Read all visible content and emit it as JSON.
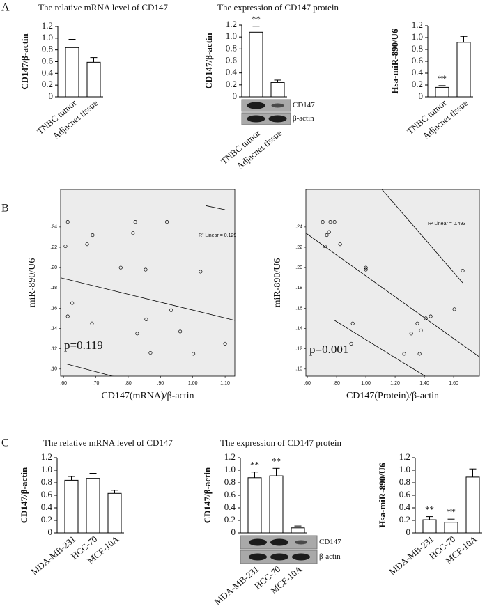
{
  "chart_data": [
    {
      "type": "bar",
      "panel": "A",
      "title": "The relative  mRNA level of CD147",
      "ylabel": "CD147/β-actin",
      "categories": [
        "TNBC tumor",
        "Adjacnet tissue"
      ],
      "values": [
        0.84,
        0.59
      ],
      "errors": [
        0.14,
        0.08
      ],
      "color": "#ffffff",
      "ylim": [
        0,
        1.2
      ],
      "yticks": [
        0,
        0.2,
        0.4,
        0.6,
        0.8,
        {
          "value": 1,
          "label": "1.0"
        },
        1.2
      ]
    },
    {
      "type": "bar",
      "title": "The expression of CD147  protein",
      "ylabel": "CD147/β-actin",
      "categories": [
        "TNBC tumor",
        "Adjacnet tissue"
      ],
      "values": [
        1.08,
        0.24
      ],
      "errors": [
        0.1,
        0.04
      ],
      "significance": [
        "**",
        null
      ],
      "color": "#ffffff",
      "blot_labels": [
        "CD147",
        "β-actin"
      ],
      "ylim": [
        0,
        1.2
      ],
      "yticks": [
        0,
        0.2,
        0.4,
        0.6,
        0.8,
        {
          "value": 1,
          "label": "1.0"
        },
        1.2
      ]
    },
    {
      "type": "bar",
      "ylabel": "Hsa-miR-890/U6",
      "categories": [
        "TNBC tumor",
        "Adjacnet tissue"
      ],
      "values": [
        0.16,
        0.92
      ],
      "errors": [
        0.03,
        0.1
      ],
      "significance": [
        "**",
        null
      ],
      "color": "#ffffff",
      "ylim": [
        0,
        1.2
      ],
      "yticks": [
        0,
        0.2,
        0.4,
        0.6,
        0.8,
        {
          "value": 1,
          "label": "1.0"
        },
        1.2
      ]
    },
    {
      "type": "scatter",
      "panel": "B",
      "xlabel": "CD147(mRNA)/β-actin",
      "ylabel": "miR-890/U6",
      "x": [
        0.613,
        0.606,
        0.673,
        0.69,
        0.627,
        0.613,
        0.688,
        0.777,
        0.815,
        0.822,
        0.854,
        0.856,
        0.828,
        0.869,
        0.92,
        0.933,
        0.961,
        1.024,
        1.002,
        1.1
      ],
      "y": [
        0.245,
        0.221,
        0.223,
        0.232,
        0.165,
        0.152,
        0.145,
        0.2,
        0.234,
        0.245,
        0.198,
        0.149,
        0.135,
        0.116,
        0.245,
        0.158,
        0.137,
        0.196,
        0.115,
        0.125
      ],
      "fit_label": "R² Linear = 0.129",
      "annotation": "p=0.119",
      "fit_line": {
        "x": [
          0.591,
          1.13
        ],
        "y": [
          0.19,
          0.148
        ]
      },
      "ci_lines": [
        {
          "x": [
            1.04,
            1.1
          ],
          "y": [
            0.261,
            0.257
          ]
        },
        {
          "x": [
            0.609,
            0.759
          ],
          "y": [
            0.105,
            0.0924
          ]
        }
      ],
      "xlim": [
        0.591,
        1.13
      ],
      "ylim": [
        0.093,
        0.277
      ],
      "xticks": [
        {
          "value": 0.6,
          "label": ".60"
        },
        {
          "value": 0.7,
          "label": ".70"
        },
        {
          "value": 0.8,
          "label": ".80"
        },
        {
          "value": 0.9,
          "label": ".90"
        },
        {
          "value": 1,
          "label": "1.00"
        },
        {
          "value": 1.1,
          "label": "1.10"
        }
      ],
      "yticks": [
        {
          "value": 0.1,
          "label": ".10"
        },
        {
          "value": 0.12,
          "label": ".12"
        },
        {
          "value": 0.14,
          "label": ".14"
        },
        {
          "value": 0.16,
          "label": ".16"
        },
        {
          "value": 0.18,
          "label": ".18"
        },
        {
          "value": 0.2,
          "label": ".20"
        },
        {
          "value": 0.22,
          "label": ".22"
        },
        {
          "value": 0.24,
          "label": ".24"
        }
      ]
    },
    {
      "type": "scatter",
      "xlabel": "CD147(Protein)/β-actin",
      "ylabel": "miR-890/U6",
      "x": [
        0.705,
        0.757,
        0.786,
        0.748,
        0.733,
        0.719,
        0.824,
        1.0,
        1.0,
        0.91,
        0.9,
        1.262,
        1.367,
        1.31,
        1.352,
        1.376,
        1.41,
        1.443,
        1.605,
        1.662
      ],
      "y": [
        0.245,
        0.245,
        0.245,
        0.235,
        0.232,
        0.221,
        0.223,
        0.2,
        0.198,
        0.145,
        0.125,
        0.115,
        0.115,
        0.135,
        0.145,
        0.138,
        0.15,
        0.152,
        0.159,
        0.197
      ],
      "fit_label": "R² Linear = 0.493",
      "annotation": "p=0.001",
      "fit_line": {
        "x": [
          0.59,
          1.776
        ],
        "y": [
          0.234,
          0.112
        ]
      },
      "ci_lines": [
        {
          "x": [
            1.11,
            1.662
          ],
          "y": [
            0.277,
            0.185
          ]
        },
        {
          "x": [
            0.786,
            1.405
          ],
          "y": [
            0.148,
            0.093
          ]
        }
      ],
      "xlim": [
        0.59,
        1.776
      ],
      "ylim": [
        0.093,
        0.277
      ],
      "xticks": [
        {
          "value": 0.6,
          "label": ".60"
        },
        {
          "value": 0.8,
          "label": ".80"
        },
        {
          "value": 1,
          "label": "1.00"
        },
        {
          "value": 1.2,
          "label": "1.20"
        },
        {
          "value": 1.4,
          "label": "1.40"
        },
        {
          "value": 1.6,
          "label": "1.60"
        }
      ],
      "yticks": [
        {
          "value": 0.1,
          "label": ".10"
        },
        {
          "value": 0.12,
          "label": ".12"
        },
        {
          "value": 0.14,
          "label": ".14"
        },
        {
          "value": 0.16,
          "label": ".16"
        },
        {
          "value": 0.18,
          "label": ".18"
        },
        {
          "value": 0.2,
          "label": ".20"
        },
        {
          "value": 0.22,
          "label": ".22"
        },
        {
          "value": 0.24,
          "label": ".24"
        }
      ]
    },
    {
      "type": "bar",
      "panel": "C",
      "title": "The relative  mRNA level of CD147",
      "ylabel": "CD147/β-actin",
      "categories": [
        "MDA-MB-231",
        "HCC-70",
        "MCF-10A"
      ],
      "values": [
        0.84,
        0.87,
        0.63
      ],
      "errors": [
        0.06,
        0.08,
        0.05
      ],
      "color": "#ffffff",
      "ylim": [
        0,
        1.2
      ],
      "yticks": [
        0,
        0.2,
        0.4,
        0.6,
        0.8,
        {
          "value": 1,
          "label": "1.0"
        },
        1.2
      ]
    },
    {
      "type": "bar",
      "title": "The expression of CD147  protein",
      "ylabel": "CD147/β-actin",
      "categories": [
        "MDA-MB-231",
        "HCC-70",
        "MCF-10A"
      ],
      "values": [
        0.88,
        0.91,
        0.08
      ],
      "errors": [
        0.09,
        0.12,
        0.03
      ],
      "significance": [
        "**",
        "**",
        null
      ],
      "color": "#ffffff",
      "blot_labels": [
        "CD147",
        "β-actin"
      ],
      "ylim": [
        0,
        1.2
      ],
      "yticks": [
        0,
        0.2,
        0.4,
        0.6,
        0.8,
        {
          "value": 1,
          "label": "1.0"
        },
        1.2
      ]
    },
    {
      "type": "bar",
      "ylabel": "Hsa-miR-890/U6",
      "categories": [
        "MDA-MB-231",
        "HCC-70",
        "MCF-10A"
      ],
      "values": [
        0.21,
        0.17,
        0.89
      ],
      "errors": [
        0.05,
        0.05,
        0.13
      ],
      "significance": [
        "**",
        "**",
        null
      ],
      "color": "#ffffff",
      "ylim": [
        0,
        1.2
      ],
      "yticks": [
        0,
        0.2,
        0.4,
        0.6,
        0.8,
        {
          "value": 1,
          "label": "1.0"
        },
        1.2
      ]
    }
  ]
}
